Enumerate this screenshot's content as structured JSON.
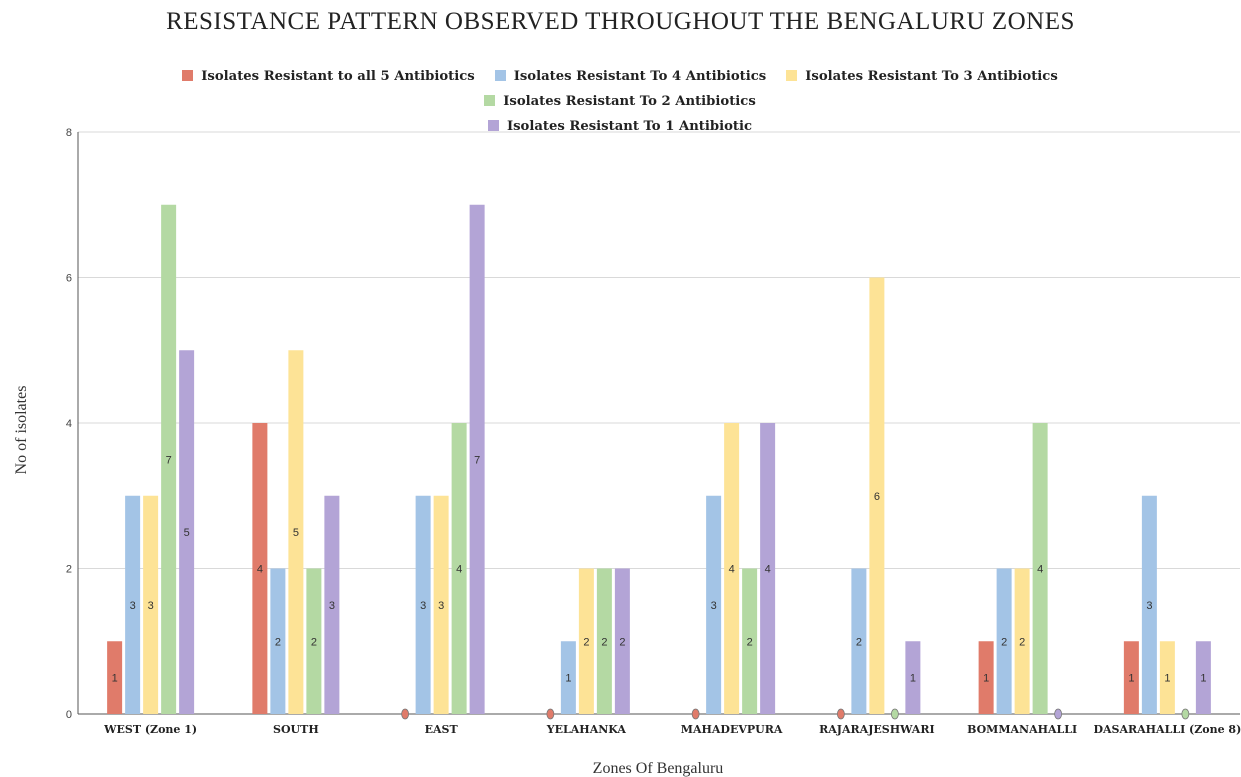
{
  "chart_data": {
    "type": "bar",
    "title": "RESISTANCE PATTERN OBSERVED THROUGHOUT THE BENGALURU ZONES",
    "xlabel": "Zones Of Bengaluru",
    "ylabel": "No of isolates",
    "ylim": [
      0,
      8
    ],
    "yticks": [
      "0",
      "2",
      "4",
      "6",
      "8"
    ],
    "grid": true,
    "legend_position": "top",
    "categories": [
      "WEST (Zone 1)",
      "SOUTH",
      "EAST",
      "YELAHANKA",
      "MAHADEVPURA",
      "RAJARAJESHWARI",
      "BOMMANAHALLI",
      "DASARAHALLI  (Zone 8)"
    ],
    "series": [
      {
        "name": "Isolates Resistant to all 5 Antibiotics",
        "color": "#e07b6a",
        "values": [
          1,
          4,
          0,
          0,
          0,
          0,
          1,
          1
        ]
      },
      {
        "name": "Isolates Resistant To 4 Antibiotics",
        "color": "#a3c4e6",
        "values": [
          3,
          2,
          3,
          1,
          3,
          2,
          2,
          3
        ]
      },
      {
        "name": "Isolates Resistant To 3 Antibiotics",
        "color": "#fde396",
        "values": [
          3,
          5,
          3,
          2,
          4,
          6,
          2,
          1
        ]
      },
      {
        "name": "Isolates Resistant To 2 Antibiotics",
        "color": "#b4d9a3",
        "values": [
          7,
          2,
          4,
          2,
          2,
          0,
          4,
          0
        ]
      },
      {
        "name": "Isolates Resistant To 1 Antibiotic",
        "color": "#b3a4d6",
        "values": [
          5,
          3,
          7,
          2,
          4,
          1,
          0,
          1
        ]
      }
    ]
  }
}
